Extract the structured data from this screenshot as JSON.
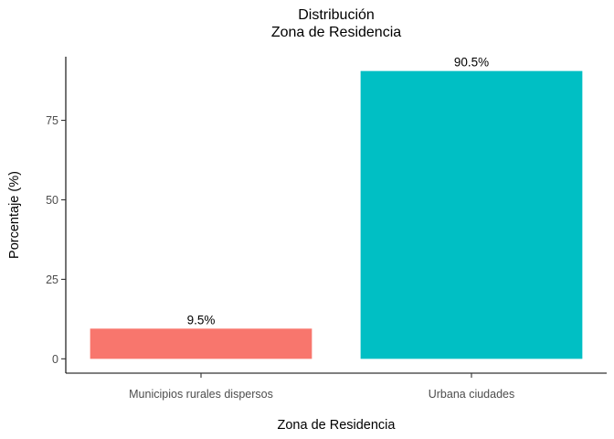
{
  "chart_data": {
    "type": "bar",
    "title": "Distribución",
    "subtitle": "Zona de Residencia",
    "xlabel": "Zona de Residencia",
    "ylabel": "Porcentaje (%)",
    "categories": [
      "Municipios rurales dispersos",
      "Urbana ciudades"
    ],
    "values": [
      9.5,
      90.5
    ],
    "data_labels": [
      "9.5%",
      "90.5%"
    ],
    "colors": [
      "#F8766D",
      "#00BFC4"
    ],
    "y_ticks": [
      0,
      25,
      50,
      75
    ],
    "y_tick_labels": [
      "0",
      "25",
      "50",
      "75"
    ],
    "ylim": [
      -4.5,
      95
    ],
    "grid": false,
    "legend": "none"
  }
}
